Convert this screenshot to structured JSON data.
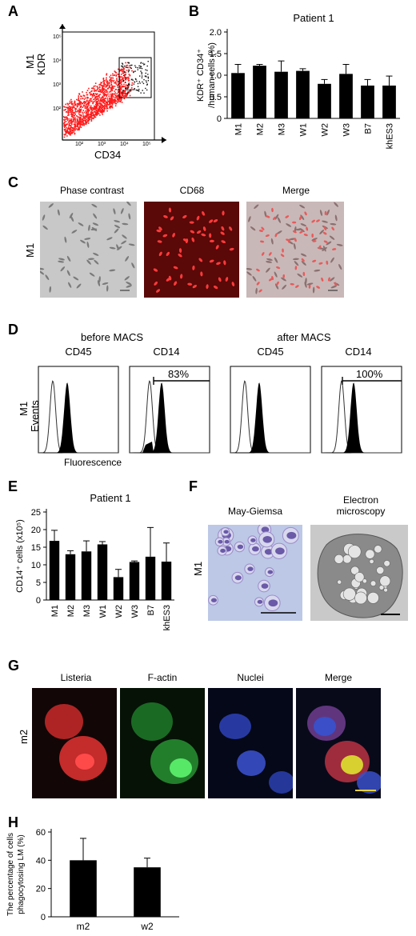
{
  "panels": {
    "A": {
      "letter": "A",
      "ylabel_line1": "M1",
      "ylabel_line2": "KDR",
      "xlabel": "CD34",
      "y_ticks": [
        "10⁵",
        "10⁴",
        "10³",
        "10²"
      ],
      "x_ticks": [
        "10²",
        "10³",
        "10⁴",
        "10⁵"
      ]
    },
    "B": {
      "letter": "B",
      "chart_data": {
        "type": "bar",
        "title": "Patient 1",
        "ylabel": "KDR⁺ CD34⁺ /human cells (%)",
        "ylabel_line1": "KDR⁺ CD34⁺",
        "ylabel_line2": "/human cells (%)",
        "categories": [
          "M1",
          "M2",
          "M3",
          "W1",
          "W2",
          "W3",
          "B7",
          "khES3"
        ],
        "values": [
          1.05,
          1.22,
          1.08,
          1.1,
          0.8,
          1.03,
          0.76,
          0.76
        ],
        "errors": [
          0.2,
          0.03,
          0.25,
          0.05,
          0.1,
          0.22,
          0.14,
          0.22
        ],
        "ylim": [
          0,
          2.0
        ],
        "yticks": [
          "0",
          "0.5",
          "1.0",
          "1.5",
          "2.0"
        ]
      }
    },
    "C": {
      "letter": "C",
      "row_label": "M1",
      "titles": [
        "Phase contrast",
        "CD68",
        "Merge"
      ]
    },
    "D": {
      "letter": "D",
      "group_left": "before MACS",
      "group_right": "after MACS",
      "sub_titles": [
        "CD45",
        "CD14",
        "CD45",
        "CD14"
      ],
      "pct_left": "83%",
      "pct_right": "100%",
      "ylabel_line1": "M1",
      "ylabel_line2": "Events",
      "xlabel": "Fluorescence"
    },
    "E": {
      "letter": "E",
      "chart_data": {
        "type": "bar",
        "title": "Patient 1",
        "ylabel": "CD14⁺ cells (x10⁵)",
        "categories": [
          "M1",
          "M2",
          "M3",
          "W1",
          "W2",
          "W3",
          "B7",
          "khES3"
        ],
        "values": [
          16.8,
          13.0,
          13.8,
          15.8,
          6.5,
          10.8,
          12.3,
          10.9
        ],
        "errors": [
          3.0,
          1.0,
          3.0,
          0.8,
          2.2,
          0.3,
          8.3,
          5.3
        ],
        "ylim": [
          0,
          25
        ],
        "yticks": [
          "0",
          "5",
          "10",
          "15",
          "20",
          "25"
        ]
      }
    },
    "F": {
      "letter": "F",
      "row_label": "M1",
      "title_left": "May-Giemsa",
      "title_right_line1": "Electron",
      "title_right_line2": "microscopy"
    },
    "G": {
      "letter": "G",
      "row_label": "m2",
      "titles": [
        "Listeria",
        "F-actin",
        "Nuclei",
        "Merge"
      ]
    },
    "H": {
      "letter": "H",
      "chart_data": {
        "type": "bar",
        "ylabel": "The percentage of cells phagocytosing LM (%)",
        "ylabel_line1": "The percentage of cells",
        "ylabel_line2": "phagocytosing LM (%)",
        "categories": [
          "m2",
          "w2"
        ],
        "values": [
          40,
          35
        ],
        "errors": [
          15.5,
          6.5
        ],
        "ylim": [
          0,
          60
        ],
        "yticks": [
          "0",
          "20",
          "40",
          "60"
        ]
      }
    }
  },
  "colors": {
    "dot_red": "#ff1a1a",
    "cd68_bg": "#5a0808",
    "cd68_cell": "#ff3b3b",
    "giemsa_bg": "#bcc8e6",
    "giemsa_cell": "#6a5aa8",
    "em_bg": "#c9c9c9",
    "listeria_red": "#d83030",
    "factin_green": "#38c048",
    "nuclei_blue": "#3a4fc8",
    "scale_yellow": "#e8d23a"
  }
}
